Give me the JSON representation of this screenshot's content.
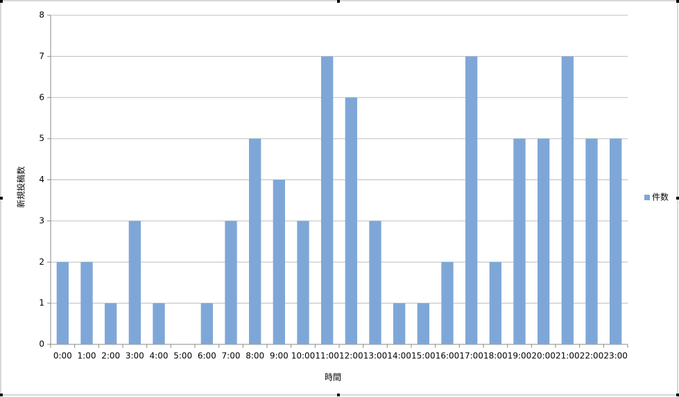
{
  "chart_data": {
    "type": "bar",
    "x_label": "時間",
    "y_label": "新規投稿数",
    "categories": [
      "0:00",
      "1:00",
      "2:00",
      "3:00",
      "4:00",
      "5:00",
      "6:00",
      "7:00",
      "8:00",
      "9:00",
      "10:00",
      "11:00",
      "12:00",
      "13:00",
      "14:00",
      "15:00",
      "16:00",
      "17:00",
      "18:00",
      "19:00",
      "20:00",
      "21:00",
      "22:00",
      "23:00"
    ],
    "series": [
      {
        "name": "件数",
        "color": "#7ea7d8",
        "values": [
          2,
          2,
          1,
          3,
          1,
          0,
          1,
          3,
          5,
          4,
          3,
          7,
          6,
          3,
          1,
          1,
          2,
          7,
          2,
          5,
          5,
          7,
          5,
          5
        ]
      }
    ],
    "ylim": [
      0,
      8
    ],
    "yticks": [
      0,
      1,
      2,
      3,
      4,
      5,
      6,
      7,
      8
    ],
    "grid": true,
    "legend": "right"
  }
}
